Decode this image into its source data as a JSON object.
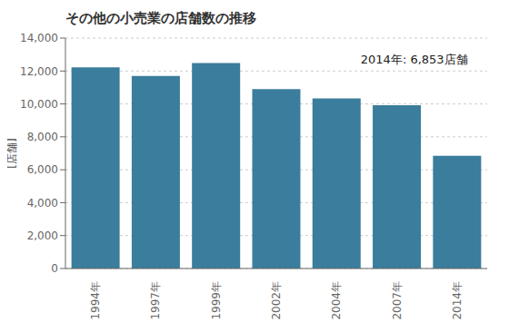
{
  "chart_data": {
    "type": "bar",
    "title": "その他の小売業の店舗数の推移",
    "ylabel": "[店舗]",
    "categories": [
      "1994年",
      "1997年",
      "1999年",
      "2002年",
      "2004年",
      "2007年",
      "2014年"
    ],
    "values": [
      12220,
      11700,
      12490,
      10900,
      10330,
      9920,
      6853
    ],
    "color": "#3a7d9c",
    "ylim": [
      0,
      14000
    ],
    "yticks": [
      0,
      {
        "value": 2000,
        "label": "2,000"
      },
      {
        "value": 4000,
        "label": "4,000"
      },
      {
        "value": 6000,
        "label": "6,000"
      },
      {
        "value": 8000,
        "label": "8,000"
      },
      {
        "value": 10000,
        "label": "10,000"
      },
      {
        "value": 12000,
        "label": "12,000"
      },
      {
        "value": 14000,
        "label": "14,000"
      }
    ],
    "grid": true,
    "annotation": "2014年: 6,853店舗"
  }
}
